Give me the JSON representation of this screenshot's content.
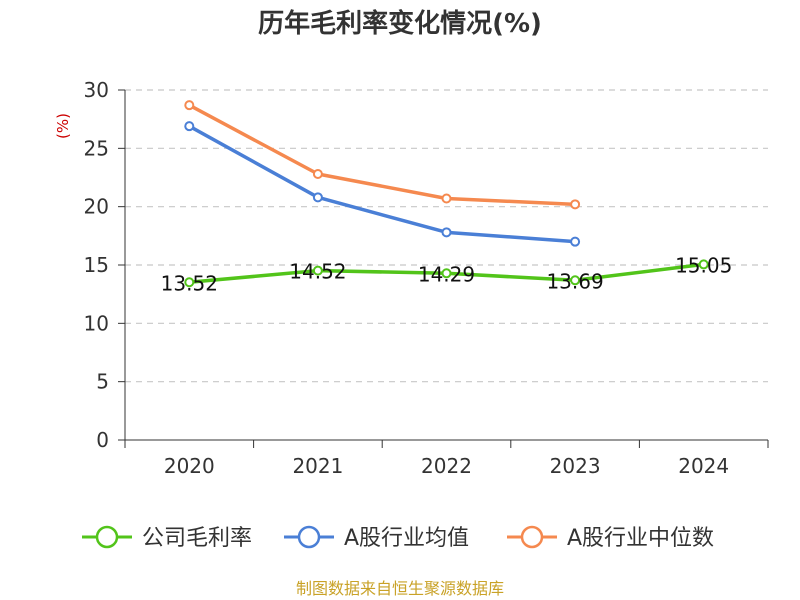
{
  "chart_data": {
    "type": "line",
    "title": "历年毛利率变化情况(%)",
    "ylabel": "(%)",
    "categories": [
      "2020",
      "2021",
      "2022",
      "2023",
      "2024"
    ],
    "ylim": [
      0,
      30
    ],
    "yticks": [
      0,
      5,
      10,
      15,
      20,
      25,
      30
    ],
    "grid": true,
    "legend_position": "bottom",
    "series": [
      {
        "name": "公司毛利率",
        "color": "#52c41a",
        "values": [
          13.52,
          14.52,
          14.29,
          13.69,
          15.05
        ],
        "labels": [
          "13.52",
          "14.52",
          "14.29",
          "13.69",
          "15.05"
        ]
      },
      {
        "name": "A股行业均值",
        "color": "#4a7fd6",
        "values": [
          26.9,
          20.8,
          17.8,
          17.0,
          null
        ]
      },
      {
        "name": "A股行业中位数",
        "color": "#f5894f",
        "values": [
          28.7,
          22.8,
          20.7,
          20.2,
          null
        ]
      }
    ]
  },
  "source": "制图数据来自恒生聚源数据库"
}
